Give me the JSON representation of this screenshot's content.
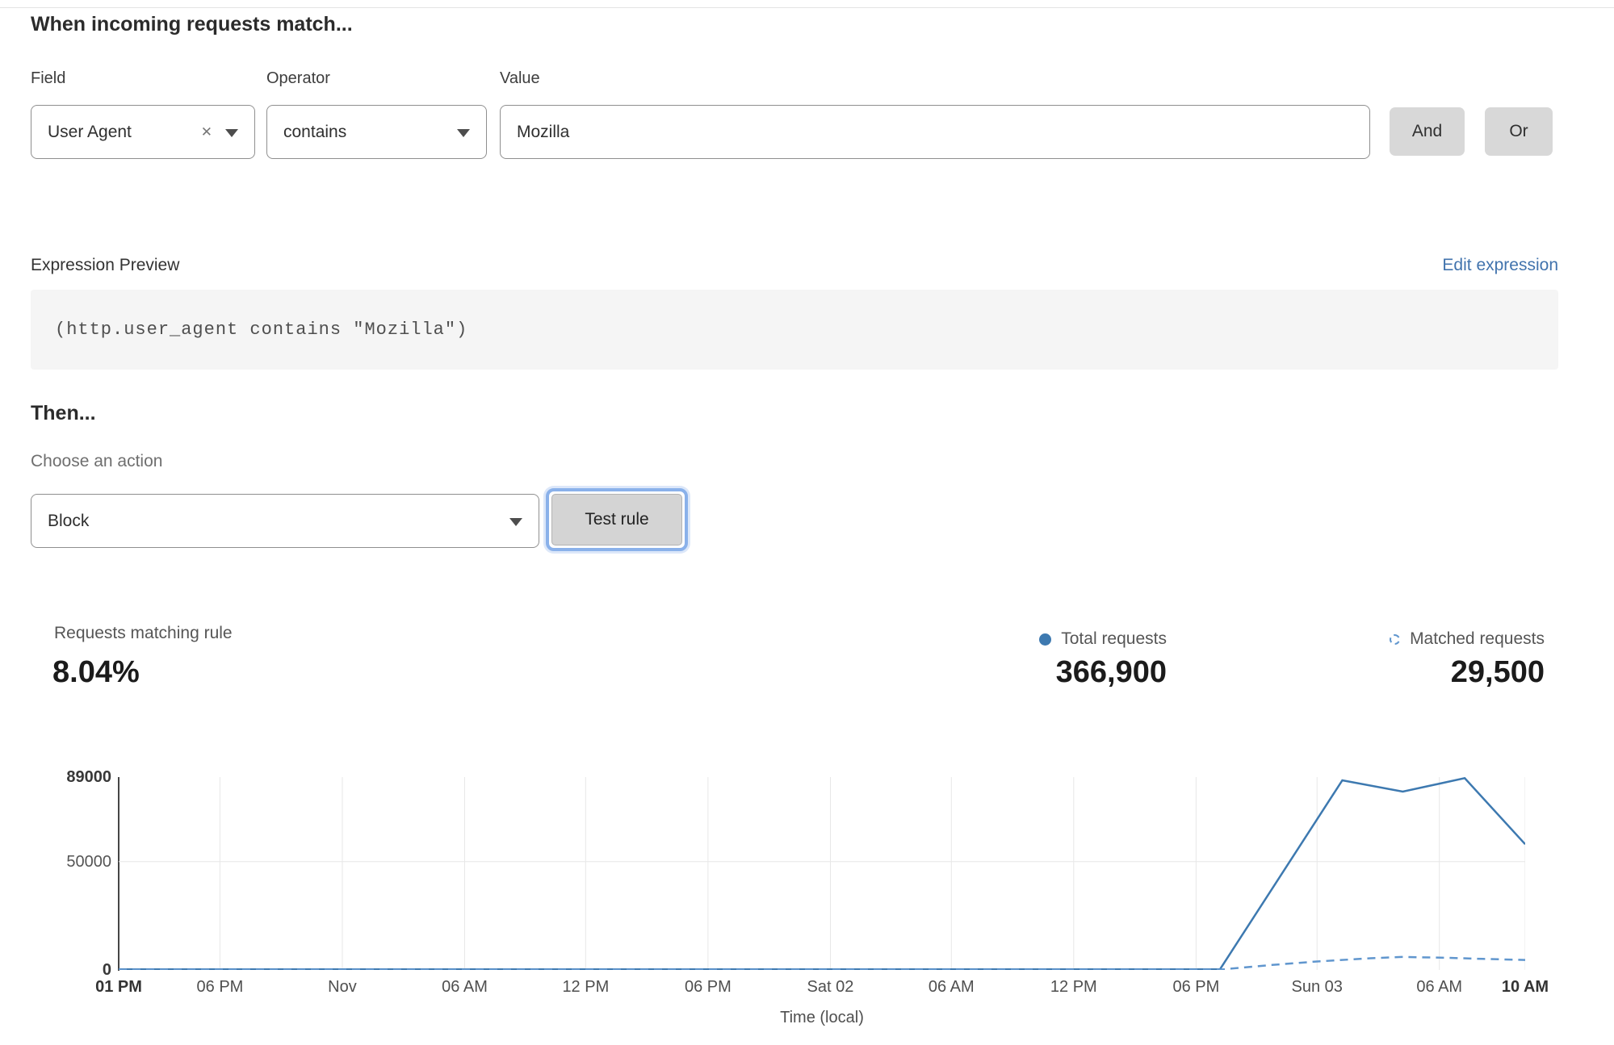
{
  "rule_builder": {
    "heading": "When incoming requests match...",
    "field": {
      "label": "Field",
      "value": "User Agent"
    },
    "operator": {
      "label": "Operator",
      "value": "contains"
    },
    "value": {
      "label": "Value",
      "value": "Mozilla"
    },
    "and_label": "And",
    "or_label": "Or",
    "clear_icon": "✕"
  },
  "expression": {
    "label": "Expression Preview",
    "edit_link": "Edit expression",
    "code": "(http.user_agent contains \"Mozilla\")"
  },
  "action": {
    "heading": "Then...",
    "label": "Choose an action",
    "value": "Block",
    "test_button": "Test rule"
  },
  "stats": {
    "matching": {
      "label": "Requests matching rule",
      "value": "8.04%"
    },
    "total": {
      "label": "Total requests",
      "value": "366,900"
    },
    "matched": {
      "label": "Matched requests",
      "value": "29,500"
    }
  },
  "colors": {
    "link_blue": "#4173ad",
    "line_solid": "#3d79b0",
    "line_dashed": "#6096ce",
    "button_gray": "#d8d8d8",
    "focus_ring": "#8ab1ea",
    "grid": "#e7e7e7"
  },
  "chart_data": {
    "type": "line",
    "title": "",
    "xlabel": "Time (local)",
    "ylabel": "",
    "ylim": [
      0,
      89000
    ],
    "grid_y_values": [
      50000
    ],
    "y_ticks": [
      {
        "value": 89000,
        "label": "89000",
        "bold": true
      },
      {
        "value": 50000,
        "label": "50000",
        "bold": false
      },
      {
        "value": 0,
        "label": "0",
        "bold": true
      }
    ],
    "x_ticks": [
      {
        "pos": 0.0,
        "label": "01 PM",
        "bold": true
      },
      {
        "pos": 0.072,
        "label": "06 PM",
        "bold": false
      },
      {
        "pos": 0.159,
        "label": "Nov",
        "bold": false
      },
      {
        "pos": 0.246,
        "label": "06 AM",
        "bold": false
      },
      {
        "pos": 0.332,
        "label": "12 PM",
        "bold": false
      },
      {
        "pos": 0.419,
        "label": "06 PM",
        "bold": false
      },
      {
        "pos": 0.506,
        "label": "Sat 02",
        "bold": false
      },
      {
        "pos": 0.592,
        "label": "06 AM",
        "bold": false
      },
      {
        "pos": 0.679,
        "label": "12 PM",
        "bold": false
      },
      {
        "pos": 0.766,
        "label": "06 PM",
        "bold": false
      },
      {
        "pos": 0.852,
        "label": "Sun 03",
        "bold": false
      },
      {
        "pos": 0.939,
        "label": "06 AM",
        "bold": false
      },
      {
        "pos": 1.0,
        "label": "10 AM",
        "bold": true
      }
    ],
    "series": [
      {
        "name": "Total requests",
        "style": "solid",
        "color": "#3d79b0",
        "points": [
          [
            0,
            300
          ],
          [
            0.783,
            300
          ],
          [
            0.87,
            87500
          ],
          [
            0.913,
            82300
          ],
          [
            0.957,
            88500
          ],
          [
            1,
            58000
          ]
        ]
      },
      {
        "name": "Matched requests",
        "style": "dashed",
        "color": "#6096ce",
        "points": [
          [
            0,
            150
          ],
          [
            0.783,
            150
          ],
          [
            0.82,
            2300
          ],
          [
            0.852,
            3900
          ],
          [
            0.89,
            5400
          ],
          [
            0.912,
            6000
          ],
          [
            0.94,
            5700
          ],
          [
            0.97,
            5100
          ],
          [
            1,
            4600
          ]
        ]
      }
    ],
    "legend": [
      {
        "label": "Total requests",
        "marker": "filled-circle"
      },
      {
        "label": "Matched requests",
        "marker": "dashed-circle"
      }
    ],
    "legend_position": "top-right",
    "grid": "vertical-at-ticks + horizontal-at-50000"
  }
}
